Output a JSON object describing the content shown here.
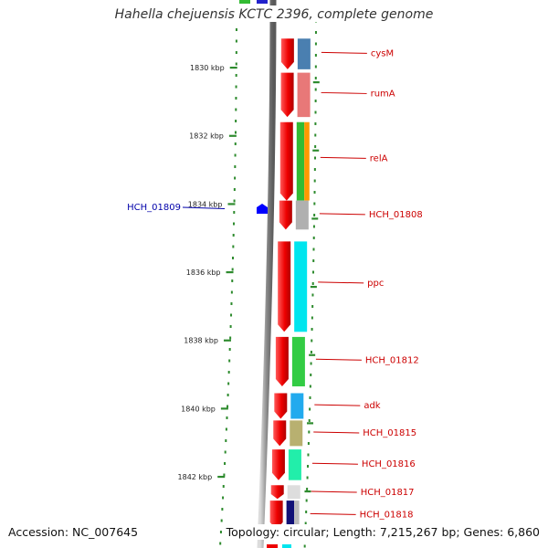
{
  "title": "Hahella chejuensis KCTC 2396, complete genome",
  "accession": "Accession: NC_007645",
  "topology": "Topology: circular; Length: 7,215,267 bp; Genes: 6,860",
  "colors": {
    "backbone": "#888888",
    "tick": "#2e8b2e",
    "gene_label": "#cc0000",
    "highlight_label": "#0000aa",
    "cds": "#ee0000"
  },
  "chart_data": {
    "type": "genome-map",
    "kbp_ticks": [
      {
        "kbp": 1830,
        "label": "1830 kbp"
      },
      {
        "kbp": 1832,
        "label": "1832 kbp"
      },
      {
        "kbp": 1834,
        "label": "1834 kbp"
      },
      {
        "kbp": 1836,
        "label": "1836 kbp"
      },
      {
        "kbp": 1838,
        "label": "1838 kbp"
      },
      {
        "kbp": 1840,
        "label": "1840 kbp"
      },
      {
        "kbp": 1842,
        "label": "1842 kbp"
      }
    ],
    "genes": [
      {
        "name": "cysM",
        "start_kbp": 1829.15,
        "end_kbp": 1830.05,
        "color": "#4a7fb0",
        "secondary": null
      },
      {
        "name": "rumA",
        "start_kbp": 1830.15,
        "end_kbp": 1831.45,
        "color": "#e87878",
        "secondary": null
      },
      {
        "name": "relA",
        "start_kbp": 1831.6,
        "end_kbp": 1833.9,
        "color": "#33bb33",
        "secondary": "#ff9900"
      },
      {
        "name": "HCH_01808",
        "start_kbp": 1833.9,
        "end_kbp": 1834.75,
        "color": "#b0b0b0",
        "secondary": null
      },
      {
        "name": "ppc",
        "start_kbp": 1835.1,
        "end_kbp": 1837.75,
        "color": "#00e5ee",
        "secondary": null
      },
      {
        "name": "HCH_01812",
        "start_kbp": 1837.9,
        "end_kbp": 1839.35,
        "color": "#33cc44",
        "secondary": null
      },
      {
        "name": "adk",
        "start_kbp": 1839.55,
        "end_kbp": 1840.3,
        "color": "#22aaee",
        "secondary": null
      },
      {
        "name": "HCH_01815",
        "start_kbp": 1840.35,
        "end_kbp": 1841.1,
        "color": "#b8b070",
        "secondary": null
      },
      {
        "name": "HCH_01816",
        "start_kbp": 1841.2,
        "end_kbp": 1842.1,
        "color": "#22eeaa",
        "secondary": null
      },
      {
        "name": "HCH_01817",
        "start_kbp": 1842.25,
        "end_kbp": 1842.65,
        "color": "#dddddd",
        "secondary": null
      },
      {
        "name": "HCH_01818",
        "start_kbp": 1842.7,
        "end_kbp": 1843.55,
        "color": "#111177",
        "secondary": "#bbbbbb"
      }
    ],
    "highlight": {
      "name": "HCH_01809",
      "kbp": 1834.5,
      "color": "#0000ff"
    }
  }
}
